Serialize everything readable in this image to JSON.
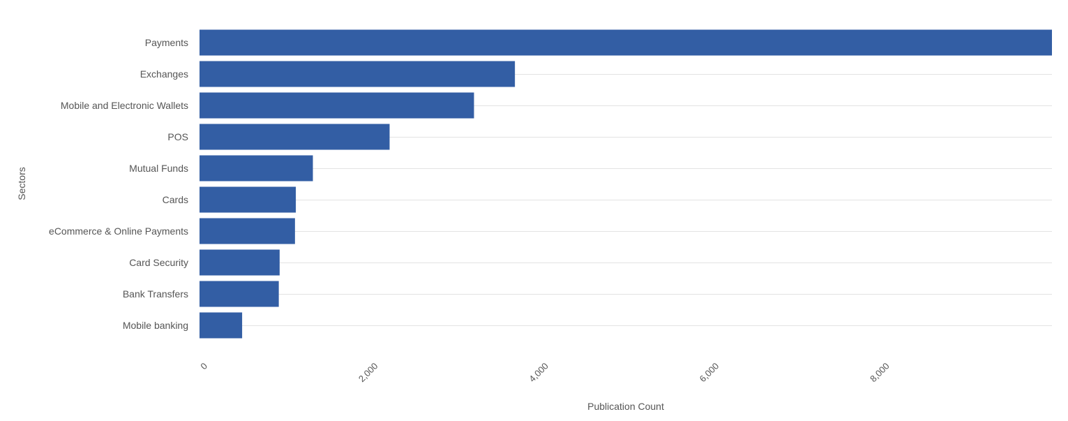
{
  "chart_data": {
    "type": "bar",
    "orientation": "horizontal",
    "categories": [
      "Payments",
      "Exchanges",
      "Mobile and Electronic Wallets",
      "POS",
      "Mutual Funds",
      "Cards",
      "eCommerce & Online Payments",
      "Card Security",
      "Bank Transfers",
      "Mobile banking"
    ],
    "values": [
      10000,
      3700,
      3220,
      2230,
      1330,
      1130,
      1120,
      940,
      930,
      500
    ],
    "xlabel": "Publication Count",
    "ylabel": "Sectors",
    "xlim": [
      0,
      10000
    ],
    "xticks": [
      0,
      2000,
      4000,
      6000,
      8000
    ],
    "xtick_labels": [
      "0",
      "2,000",
      "4,000",
      "6,000",
      "8,000"
    ],
    "grid": "horizontal",
    "colors": {
      "bar": "#335ea4",
      "grid": "#e3e3e3",
      "text": "#555555"
    }
  }
}
